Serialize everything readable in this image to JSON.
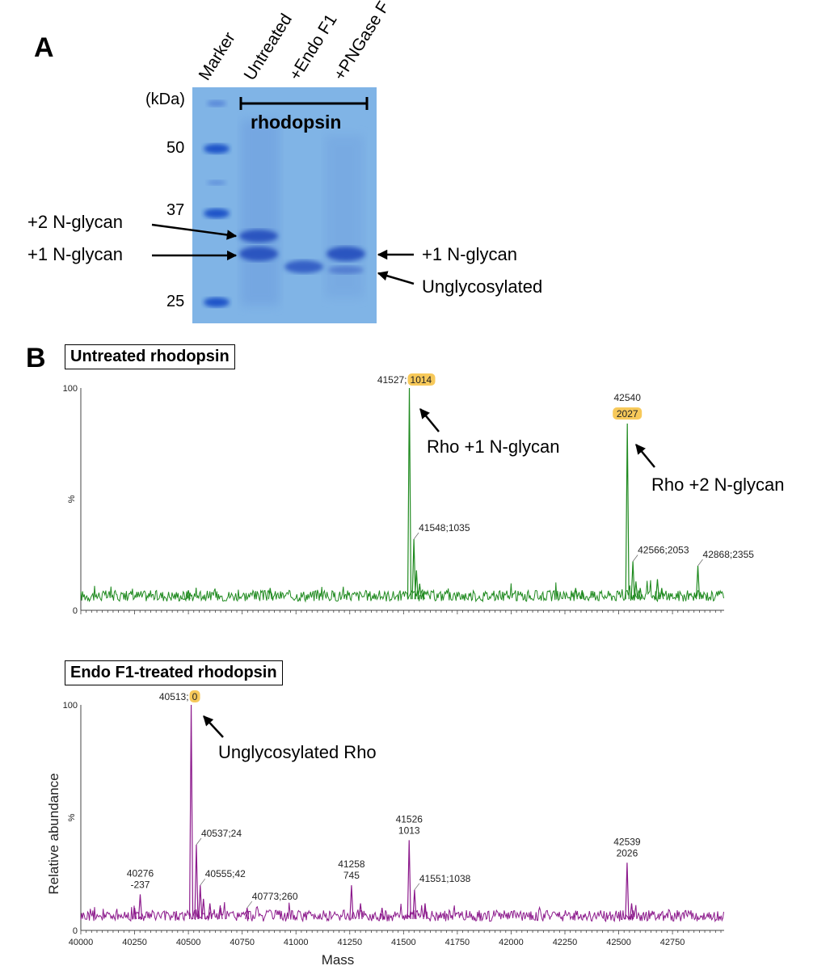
{
  "panel_a": {
    "letter": "A",
    "lanes": [
      "Marker",
      "Untreated",
      "+Endo F1",
      "+PNGase F"
    ],
    "kda_unit": "(kDa)",
    "markers": [
      "50",
      "37",
      "25"
    ],
    "bracket_label": "rhodopsin",
    "left_labels": [
      "+2 N-glycan",
      "+1 N-glycan"
    ],
    "right_labels": [
      "+1 N-glycan",
      "Unglycosylated"
    ],
    "colors": {
      "gel": "#7fb2e5",
      "band": "#2a55c0",
      "marker": "#1d52c8"
    }
  },
  "panel_b": {
    "letter": "B",
    "xlabel": "Mass",
    "ylabel": "Relative abundance",
    "ytick_top": "100",
    "ytick_mid": "%",
    "ytick_zero": "0",
    "xticks": [
      "40000",
      "40250",
      "40500",
      "40750",
      "41000",
      "41250",
      "41500",
      "41750",
      "42000",
      "42250",
      "42500",
      "42750"
    ],
    "spectra": [
      {
        "title": "Untreated rhodopsin",
        "color": "#1f8a1f",
        "highlight": "#f7c95a",
        "peak_labels": [
          {
            "mass": 41527,
            "text": "41527;",
            "hl": "1014"
          },
          {
            "mass": 41548,
            "text": "41548;1035"
          },
          {
            "mass": 42540,
            "text": "42540",
            "hl": "2027"
          },
          {
            "mass": 42566,
            "text": "42566;2053"
          },
          {
            "mass": 42868,
            "text": "42868;2355"
          }
        ],
        "annotations": [
          "Rho +1 N-glycan",
          "Rho +2 N-glycan"
        ]
      },
      {
        "title": "Endo F1-treated rhodopsin",
        "color": "#8c1a8c",
        "highlight": "#f7c95a",
        "peak_labels": [
          {
            "mass": 40513,
            "text": "40513;",
            "hl": "0"
          },
          {
            "mass": 40276,
            "text": "40276",
            "line2": "-237"
          },
          {
            "mass": 40537,
            "text": "40537;24"
          },
          {
            "mass": 40555,
            "text": "40555;42"
          },
          {
            "mass": 40773,
            "text": "40773;260"
          },
          {
            "mass": 41258,
            "text": "41258",
            "line2": "745"
          },
          {
            "mass": 41526,
            "text": "41526",
            "line2": "1013"
          },
          {
            "mass": 41551,
            "text": "41551;1038"
          },
          {
            "mass": 42539,
            "text": "42539",
            "line2": "2026"
          }
        ],
        "annotations": [
          "Unglycosylated Rho"
        ]
      }
    ]
  }
}
